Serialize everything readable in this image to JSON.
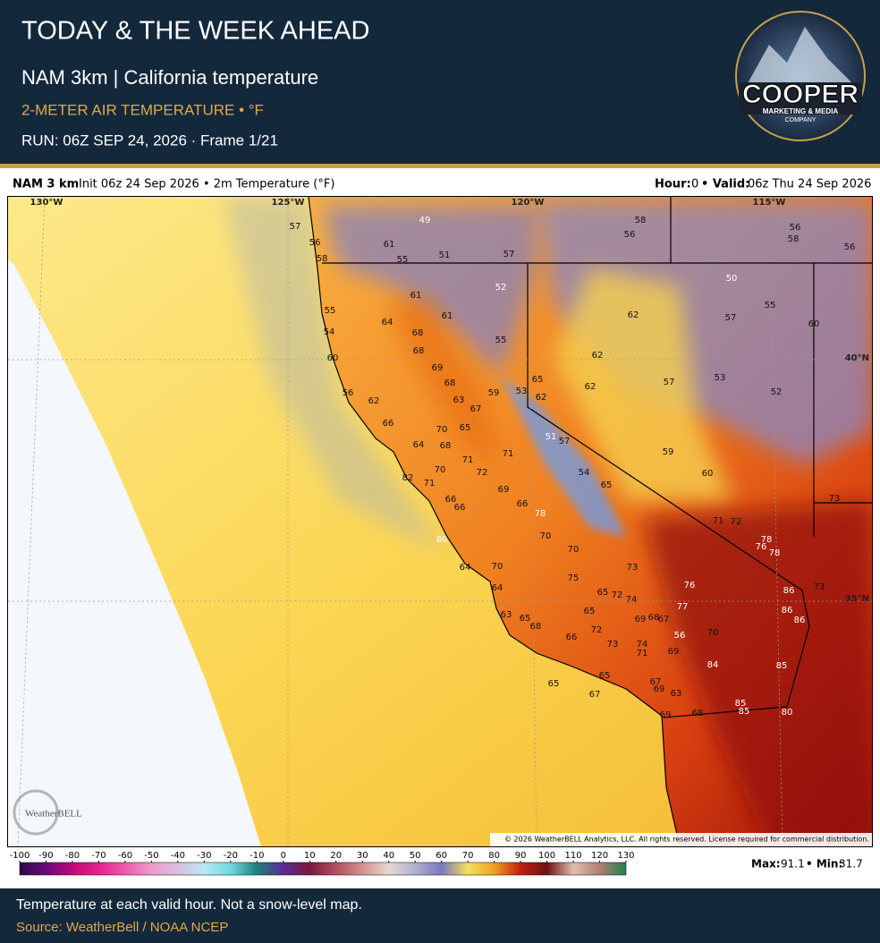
{
  "header": {
    "title": "TODAY & THE WEEK AHEAD",
    "subtitle": "NAM 3km | California temperature",
    "variable": "2-METER AIR TEMPERATURE • °F",
    "run": "RUN: 06Z SEP 24, 2026 · Frame 1/21"
  },
  "logo": {
    "name": "COOPER",
    "line1": "MARKETING & MEDIA",
    "line2": "COMPANY"
  },
  "map_header": {
    "model": "NAM 3 km",
    "init": "Init 06z 24 Sep 2026 • 2m Temperature (°F)",
    "hour_label": "Hour:",
    "hour": 0,
    "valid_label": "• Valid:",
    "valid": "06z Thu 24 Sep 2026"
  },
  "graticule": [
    "130°W",
    "125°W",
    "120°W",
    "115°W",
    "40°N",
    "35°N"
  ],
  "temperatures": [
    57,
    56,
    61,
    55,
    49,
    51,
    57,
    58,
    52,
    58,
    56,
    56,
    58,
    56,
    50,
    55,
    57,
    60,
    61,
    61,
    64,
    55,
    54,
    68,
    55,
    62,
    68,
    60,
    62,
    69,
    68,
    65,
    62,
    62,
    57,
    53,
    52,
    56,
    62,
    63,
    59,
    53,
    67,
    66,
    70,
    65,
    64,
    68,
    51,
    57,
    71,
    71,
    59,
    70,
    72,
    54,
    65,
    60,
    82,
    71,
    69,
    66,
    66,
    66,
    78,
    73,
    71,
    72,
    80,
    70,
    70,
    78,
    76,
    78,
    64,
    70,
    73,
    75,
    76,
    65,
    72,
    74,
    86,
    73,
    64,
    77,
    86,
    86,
    63,
    65,
    65,
    68,
    69,
    68,
    67,
    72,
    56,
    70,
    66,
    73,
    74,
    71,
    69,
    84,
    85,
    65,
    67,
    69,
    63,
    65,
    67,
    85,
    85,
    80,
    68,
    69
  ],
  "copyright": "© 2026 WeatherBELL Analytics, LLC. All rights reserved. License required for commercial distribution.",
  "watermark": "WeatherBELL",
  "colorbar": {
    "ticks": [
      -100,
      -90,
      -80,
      -70,
      -60,
      -50,
      -40,
      -30,
      -20,
      -10,
      0,
      10,
      20,
      30,
      40,
      50,
      60,
      70,
      80,
      90,
      100,
      110,
      120,
      130
    ],
    "colors": [
      "#2a0a4a",
      "#6a0a7a",
      "#c0087a",
      "#e8228f",
      "#ee5aaa",
      "#f09ac8",
      "#d8c0e0",
      "#b8e8f0",
      "#70d8e0",
      "#20807a",
      "#5a2a9a",
      "#7a1a3a",
      "#b05060",
      "#d89090",
      "#e8d8d0",
      "#b0b0d0",
      "#7878c0",
      "#f8e060",
      "#f0a020",
      "#c02010",
      "#701010",
      "#e0c0b0",
      "#b08070",
      "#208050"
    ]
  },
  "stats": {
    "max_label": "Max:",
    "max": 91.1,
    "min_label": "• Min:",
    "min": 31.7
  },
  "footer": {
    "note": "Temperature at each valid hour. Not a snow-level map.",
    "source": "Source: WeatherBell / NOAA NCEP"
  }
}
